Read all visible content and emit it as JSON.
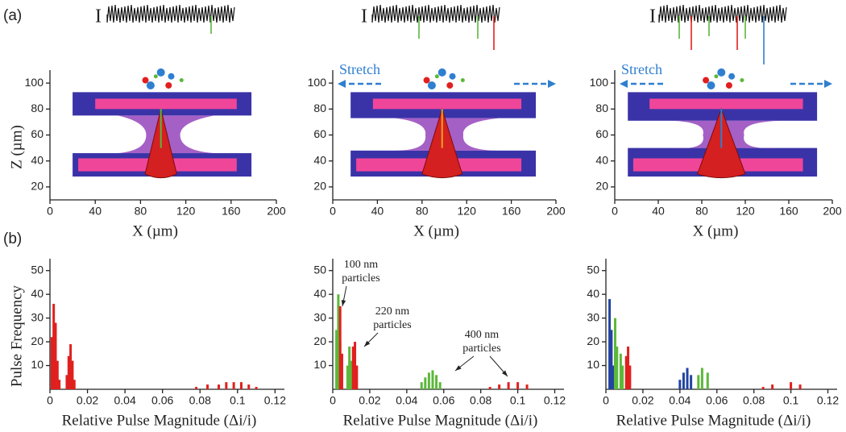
{
  "panel_labels": [
    "(a)",
    "(b)"
  ],
  "chart_data": [
    {
      "type": "render",
      "trace_label": "I",
      "xlabel": "X (µm)",
      "ylabel": "Z (µm)",
      "xlim": [
        0,
        200
      ],
      "xticks": [
        0,
        40,
        80,
        120,
        160,
        200
      ],
      "ylim": [
        10,
        110
      ],
      "yticks": [
        20,
        40,
        60,
        80,
        100
      ],
      "annotations": []
    },
    {
      "type": "render",
      "trace_label": "I",
      "xlabel": "X (µm)",
      "xlim": [
        0,
        200
      ],
      "xticks": [
        0,
        40,
        80,
        120,
        160,
        200
      ],
      "ylim": [
        10,
        110
      ],
      "yticks": [
        20,
        40,
        60,
        80,
        100
      ],
      "annotations": [
        "Stretch"
      ]
    },
    {
      "type": "render",
      "trace_label": "I",
      "xlabel": "X (µm)",
      "xlim": [
        0,
        200
      ],
      "xticks": [
        0,
        40,
        80,
        120,
        160,
        200
      ],
      "ylim": [
        10,
        110
      ],
      "yticks": [
        20,
        40,
        60,
        80,
        100
      ],
      "annotations": [
        "Stretch"
      ]
    },
    {
      "type": "spikes",
      "xlabel": "Relative Pulse Magnitude (Δi/i)",
      "ylabel": "Pulse Frequency",
      "xlim": [
        0,
        0.125
      ],
      "xticks": [
        0,
        0.02,
        0.04,
        0.06,
        0.08,
        0.1,
        0.12
      ],
      "ylim": [
        0,
        55
      ],
      "yticks": [
        10,
        20,
        30,
        40,
        50
      ],
      "annotations": [],
      "series": [
        {
          "color": "#e0201e",
          "x": [
            0.001,
            0.002,
            0.003,
            0.004,
            0.005,
            0.009,
            0.01,
            0.011,
            0.012,
            0.013,
            0.078,
            0.084,
            0.09,
            0.094,
            0.098,
            0.102,
            0.106,
            0.11
          ],
          "values": [
            22,
            36,
            28,
            12,
            4,
            6,
            14,
            19,
            12,
            4,
            1,
            2,
            2,
            3,
            3,
            3,
            2,
            1
          ]
        }
      ]
    },
    {
      "type": "spikes",
      "xlabel": "Relative Pulse Magnitude (Δi/i)",
      "xlim": [
        0,
        0.125
      ],
      "xticks": [
        0,
        0.02,
        0.04,
        0.06,
        0.08,
        0.1,
        0.12
      ],
      "ylim": [
        0,
        55
      ],
      "yticks": [
        10,
        20,
        30,
        40,
        50
      ],
      "annotations": [
        [
          "100 nm",
          "particles"
        ],
        [
          "220 nm",
          "particles"
        ],
        [
          "400 nm",
          "particles"
        ]
      ],
      "series": [
        {
          "color": "#5cb83a",
          "x": [
            0.002,
            0.003,
            0.004,
            0.008,
            0.009,
            0.01,
            0.048,
            0.05,
            0.052,
            0.054,
            0.056,
            0.058
          ],
          "values": [
            25,
            40,
            20,
            10,
            18,
            12,
            3,
            5,
            7,
            8,
            6,
            3
          ]
        },
        {
          "color": "#e0201e",
          "x": [
            0.004,
            0.005,
            0.011,
            0.012,
            0.013,
            0.085,
            0.09,
            0.095,
            0.1,
            0.105
          ],
          "values": [
            35,
            15,
            18,
            20,
            10,
            1,
            2,
            3,
            3,
            2
          ]
        }
      ]
    },
    {
      "type": "spikes",
      "xlabel": "Relative Pulse Magnitude (Δi/i)",
      "xlim": [
        0,
        0.125
      ],
      "xticks": [
        0,
        0.02,
        0.04,
        0.06,
        0.08,
        0.1,
        0.12
      ],
      "ylim": [
        0,
        55
      ],
      "yticks": [
        10,
        20,
        30,
        40,
        50
      ],
      "annotations": [],
      "series": [
        {
          "color": "#2244a0",
          "x": [
            0.002,
            0.003,
            0.004,
            0.04,
            0.042,
            0.044,
            0.046
          ],
          "values": [
            38,
            25,
            10,
            4,
            7,
            9,
            6
          ]
        },
        {
          "color": "#5cb83a",
          "x": [
            0.005,
            0.006,
            0.008,
            0.009,
            0.05,
            0.052,
            0.055
          ],
          "values": [
            30,
            18,
            15,
            10,
            6,
            9,
            7
          ]
        },
        {
          "color": "#e0201e",
          "x": [
            0.011,
            0.012,
            0.013,
            0.085,
            0.09,
            0.1,
            0.105
          ],
          "values": [
            14,
            18,
            10,
            1,
            2,
            3,
            2
          ]
        }
      ]
    }
  ]
}
